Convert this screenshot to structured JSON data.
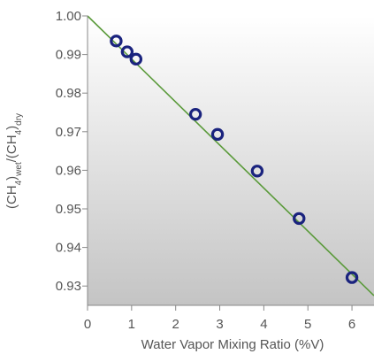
{
  "chart_data": {
    "type": "scatter",
    "xlabel": "Water Vapor Mixing Ratio (%V)",
    "ylabel": {
      "base1": "(CH",
      "sub1": "4",
      "close1": ")",
      "subwet": "wet",
      "slash": "/(CH",
      "sub2": "4",
      "close2": ")",
      "subdry": "dry"
    },
    "xlim": [
      0,
      6.5
    ],
    "ylim": [
      0.925,
      1.0
    ],
    "x_ticks": [
      0,
      1,
      2,
      3,
      4,
      5,
      6
    ],
    "y_ticks": [
      0.93,
      0.94,
      0.95,
      0.96,
      0.97,
      0.98,
      0.99,
      1.0
    ],
    "x_tick_labels": [
      "0",
      "1",
      "2",
      "3",
      "4",
      "5",
      "6"
    ],
    "y_tick_labels": [
      "0.93",
      "0.94",
      "0.95",
      "0.96",
      "0.97",
      "0.98",
      "0.99",
      "1.00"
    ],
    "series": [
      {
        "type": "scatter",
        "x": [
          0.65,
          0.9,
          1.1,
          2.45,
          2.95,
          3.85,
          4.8,
          6.0
        ],
        "y": [
          0.9935,
          0.9907,
          0.9888,
          0.9745,
          0.9693,
          0.9598,
          0.9475,
          0.9322
        ]
      },
      {
        "type": "line",
        "x": [
          0,
          6.5
        ],
        "y": [
          1.0,
          0.9275
        ]
      }
    ],
    "grid": false,
    "legend": "none",
    "colors": {
      "marker": "#1a237e",
      "fit_line": "#5a9a3a",
      "axis": "#888888",
      "plot_bg_top": "#ffffff",
      "plot_bg_bottom": "#c4c4c4"
    }
  }
}
